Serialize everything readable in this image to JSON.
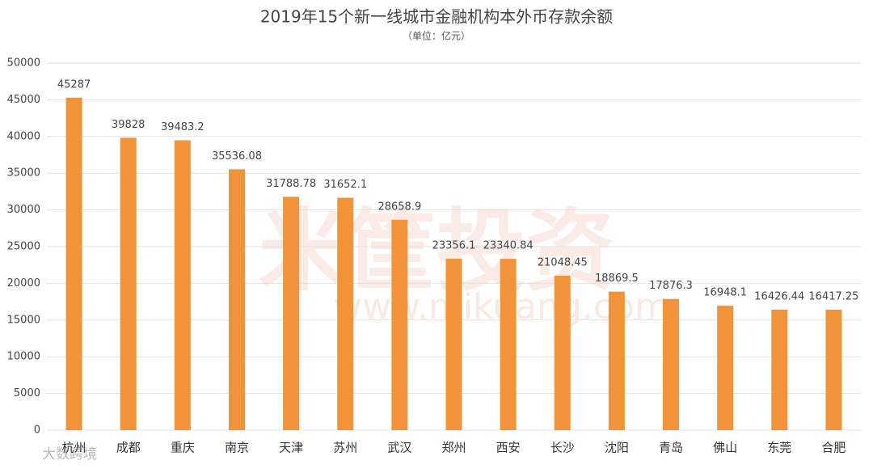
{
  "chart_data": {
    "type": "bar",
    "title": "2019年15个新一线城市金融机构本外币存款余额",
    "subtitle": "（单位：亿元）",
    "watermark": [
      "米筐投资",
      "www.mikuang.com",
      "大数跨境"
    ],
    "categories": [
      "杭州",
      "成都",
      "重庆",
      "南京",
      "天津",
      "苏州",
      "武汉",
      "郑州",
      "西安",
      "长沙",
      "沈阳",
      "青岛",
      "佛山",
      "东莞",
      "合肥"
    ],
    "values": [
      45287,
      39828,
      39483.2,
      35536.08,
      31788.78,
      31652.1,
      28658.9,
      23356.1,
      23340.84,
      21048.45,
      18869.5,
      17876.3,
      16948.1,
      16426.44,
      16417.25
    ],
    "color": "#f39339",
    "ylim": [
      0,
      50000
    ],
    "yticks": [
      0,
      5000,
      10000,
      15000,
      20000,
      25000,
      30000,
      35000,
      40000,
      45000,
      50000
    ],
    "grid": true
  }
}
